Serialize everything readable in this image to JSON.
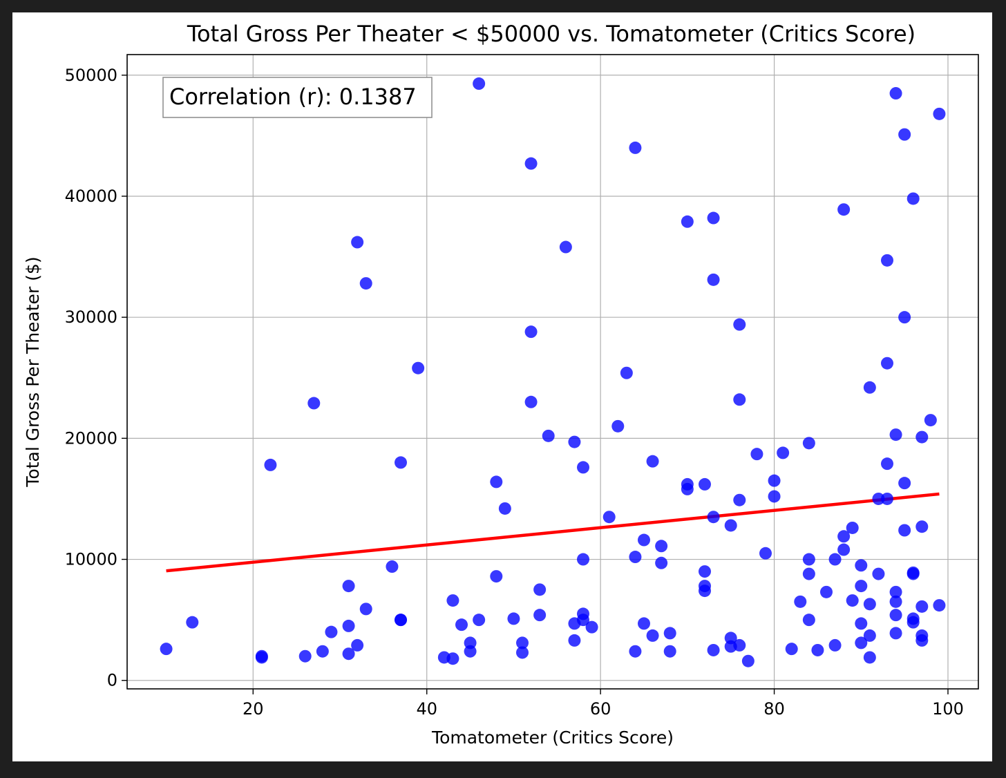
{
  "chart_data": {
    "type": "scatter",
    "title": "Total Gross Per Theater < $50000 vs. Tomatometer (Critics Score)",
    "xlabel": "Tomatometer (Critics Score)",
    "ylabel": "Total Gross Per Theater ($)",
    "xlim": [
      5.5,
      103.5
    ],
    "ylim": [
      -700,
      51700
    ],
    "xticks": [
      20,
      40,
      60,
      80,
      100
    ],
    "xtick_labels": [
      "20",
      "40",
      "60",
      "80",
      "100"
    ],
    "yticks": [
      0,
      10000,
      20000,
      30000,
      40000,
      50000
    ],
    "ytick_labels": [
      "0",
      "10000",
      "20000",
      "30000",
      "40000",
      "50000"
    ],
    "grid": true,
    "annotation": {
      "text": "Correlation (r): 0.1387",
      "position": "top-left"
    },
    "points_color": "#0000ff",
    "trend_color": "#ff0000",
    "trendline": {
      "x": [
        10,
        99
      ],
      "y": [
        9050,
        15400
      ]
    },
    "points": [
      [
        10,
        2600
      ],
      [
        13,
        4800
      ],
      [
        21,
        1900
      ],
      [
        21,
        2000
      ],
      [
        22,
        17800
      ],
      [
        26,
        2000
      ],
      [
        27,
        22900
      ],
      [
        28,
        2400
      ],
      [
        29,
        4000
      ],
      [
        31,
        2200
      ],
      [
        31,
        4500
      ],
      [
        31,
        7800
      ],
      [
        32,
        2900
      ],
      [
        32,
        36200
      ],
      [
        33,
        32800
      ],
      [
        33,
        5900
      ],
      [
        36,
        9400
      ],
      [
        37,
        5000
      ],
      [
        37,
        5000
      ],
      [
        37,
        18000
      ],
      [
        39,
        25800
      ],
      [
        42,
        1900
      ],
      [
        43,
        1800
      ],
      [
        43,
        6600
      ],
      [
        44,
        4600
      ],
      [
        45,
        3100
      ],
      [
        45,
        2400
      ],
      [
        46,
        5000
      ],
      [
        46,
        49300
      ],
      [
        48,
        16400
      ],
      [
        48,
        8600
      ],
      [
        49,
        14200
      ],
      [
        50,
        5100
      ],
      [
        51,
        3100
      ],
      [
        51,
        2300
      ],
      [
        52,
        42700
      ],
      [
        52,
        28800
      ],
      [
        52,
        23000
      ],
      [
        53,
        7500
      ],
      [
        53,
        5400
      ],
      [
        54,
        20200
      ],
      [
        56,
        35800
      ],
      [
        57,
        19700
      ],
      [
        57,
        4700
      ],
      [
        57,
        3300
      ],
      [
        58,
        17600
      ],
      [
        58,
        10000
      ],
      [
        58,
        5000
      ],
      [
        58,
        5500
      ],
      [
        59,
        4400
      ],
      [
        61,
        13500
      ],
      [
        62,
        21000
      ],
      [
        63,
        25400
      ],
      [
        64,
        44000
      ],
      [
        64,
        10200
      ],
      [
        64,
        2400
      ],
      [
        65,
        11600
      ],
      [
        65,
        4700
      ],
      [
        66,
        18100
      ],
      [
        66,
        3700
      ],
      [
        67,
        11100
      ],
      [
        67,
        9700
      ],
      [
        68,
        3900
      ],
      [
        68,
        2400
      ],
      [
        70,
        37900
      ],
      [
        70,
        16200
      ],
      [
        70,
        15800
      ],
      [
        72,
        16200
      ],
      [
        72,
        9000
      ],
      [
        72,
        7800
      ],
      [
        72,
        7400
      ],
      [
        73,
        38200
      ],
      [
        73,
        33100
      ],
      [
        73,
        13500
      ],
      [
        73,
        2500
      ],
      [
        75,
        12800
      ],
      [
        75,
        3500
      ],
      [
        75,
        2800
      ],
      [
        76,
        29400
      ],
      [
        76,
        23200
      ],
      [
        76,
        14900
      ],
      [
        76,
        2900
      ],
      [
        77,
        1600
      ],
      [
        78,
        18700
      ],
      [
        79,
        10500
      ],
      [
        80,
        16500
      ],
      [
        80,
        15200
      ],
      [
        81,
        18800
      ],
      [
        82,
        2600
      ],
      [
        83,
        6500
      ],
      [
        84,
        19600
      ],
      [
        84,
        10000
      ],
      [
        84,
        8800
      ],
      [
        84,
        5000
      ],
      [
        85,
        2500
      ],
      [
        86,
        7300
      ],
      [
        87,
        10000
      ],
      [
        87,
        2900
      ],
      [
        88,
        38900
      ],
      [
        88,
        11900
      ],
      [
        88,
        10800
      ],
      [
        89,
        12600
      ],
      [
        89,
        6600
      ],
      [
        90,
        9500
      ],
      [
        90,
        7800
      ],
      [
        90,
        4700
      ],
      [
        90,
        3100
      ],
      [
        91,
        24200
      ],
      [
        91,
        6300
      ],
      [
        91,
        3700
      ],
      [
        91,
        1900
      ],
      [
        92,
        15000
      ],
      [
        92,
        8800
      ],
      [
        93,
        34700
      ],
      [
        93,
        26200
      ],
      [
        93,
        17900
      ],
      [
        93,
        15000
      ],
      [
        94,
        48500
      ],
      [
        94,
        20300
      ],
      [
        94,
        7300
      ],
      [
        94,
        6500
      ],
      [
        94,
        5400
      ],
      [
        94,
        3900
      ],
      [
        95,
        45100
      ],
      [
        95,
        30000
      ],
      [
        95,
        16300
      ],
      [
        95,
        12400
      ],
      [
        96,
        39800
      ],
      [
        96,
        8900
      ],
      [
        96,
        8800
      ],
      [
        96,
        5100
      ],
      [
        96,
        4800
      ],
      [
        97,
        20100
      ],
      [
        97,
        12700
      ],
      [
        97,
        6100
      ],
      [
        97,
        3700
      ],
      [
        97,
        3300
      ],
      [
        98,
        21500
      ],
      [
        99,
        46800
      ],
      [
        99,
        6200
      ]
    ]
  }
}
